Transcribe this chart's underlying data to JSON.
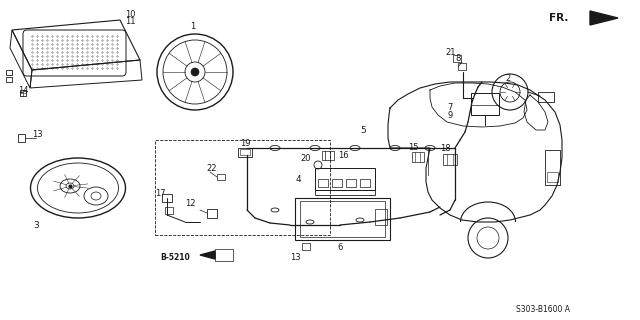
{
  "bg_color": "#ffffff",
  "line_color": "#1a1a1a",
  "diagram_code": "S303-B1600 A",
  "fr_label": "FR.",
  "fig_width": 6.4,
  "fig_height": 3.2,
  "dpi": 100,
  "b_label": "B-5210"
}
